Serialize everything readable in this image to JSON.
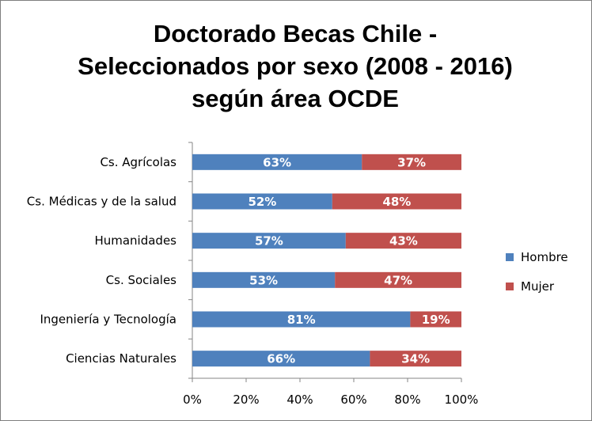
{
  "chart_data": {
    "type": "bar",
    "orientation": "horizontal",
    "stacked": "percent",
    "title_lines": [
      "Doctorado Becas Chile -",
      "Seleccionados por sexo (2008 - 2016)",
      "según área OCDE"
    ],
    "categories": [
      "Cs. Agrícolas",
      "Cs. Médicas y de la salud",
      "Humanidades",
      "Cs. Sociales",
      "Ingeniería y Tecnología",
      "Ciencias Naturales"
    ],
    "series": [
      {
        "name": "Hombre",
        "color": "#4f81bd",
        "values": [
          63,
          52,
          57,
          53,
          81,
          66
        ],
        "labels": [
          "63%",
          "52%",
          "57%",
          "53%",
          "81%",
          "66%"
        ]
      },
      {
        "name": "Mujer",
        "color": "#c0504d",
        "values": [
          37,
          48,
          43,
          47,
          19,
          34
        ],
        "labels": [
          "37%",
          "48%",
          "43%",
          "47%",
          "19%",
          "34%"
        ]
      }
    ],
    "xlim": [
      0,
      100
    ],
    "x_ticks": [
      0,
      20,
      40,
      60,
      80,
      100
    ],
    "x_tick_labels": [
      "0%",
      "20%",
      "40%",
      "60%",
      "80%",
      "100%"
    ],
    "grid": false,
    "legend_position": "right"
  }
}
